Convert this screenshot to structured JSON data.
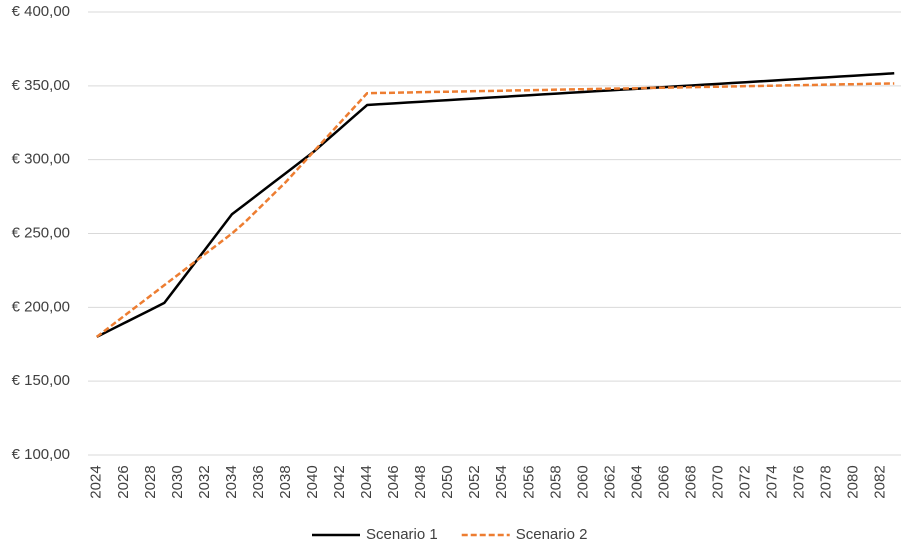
{
  "chart_data": {
    "type": "line",
    "categories": [
      "2024",
      null,
      "2026",
      null,
      "2028",
      null,
      "2030",
      null,
      "2032",
      null,
      "2034",
      null,
      "2036",
      null,
      "2038",
      null,
      "2040",
      null,
      "2042",
      null,
      "2044",
      null,
      "2046",
      null,
      "2048",
      null,
      "2050",
      null,
      "2052",
      null,
      "2054",
      null,
      "2056",
      null,
      "2058",
      null,
      "2060",
      null,
      "2062",
      null,
      "2064",
      null,
      "2066",
      null,
      "2068",
      null,
      "2070",
      null,
      "2072",
      null,
      "2074",
      null,
      "2076",
      null,
      "2078",
      null,
      "2080",
      null,
      "2082",
      null
    ],
    "series": [
      {
        "name": "Scenario 1",
        "color": "#000000",
        "dashed": false,
        "values": [
          180,
          184.6,
          189.2,
          193.8,
          198.4,
          203,
          215,
          227,
          239,
          251,
          263,
          270,
          277,
          284,
          291,
          298,
          305,
          313,
          321,
          329,
          337,
          337.6,
          338.1,
          338.7,
          339.2,
          339.8,
          340.3,
          340.9,
          341.4,
          342.0,
          342.5,
          343.1,
          343.6,
          344.2,
          344.7,
          345.3,
          345.8,
          346.4,
          346.9,
          347.5,
          348.0,
          348.6,
          349.1,
          349.7,
          350.2,
          350.8,
          351.3,
          351.9,
          352.4,
          353.0,
          353.5,
          354.1,
          354.6,
          355.2,
          355.7,
          356.3,
          356.8,
          357.4,
          357.9,
          358.5
        ]
      },
      {
        "name": "Scenario 2",
        "color": "#ed7d31",
        "dashed": true,
        "values": [
          180,
          187,
          194,
          201,
          208,
          215,
          222,
          229,
          236,
          243,
          250,
          258,
          267,
          276,
          285,
          295,
          305,
          315,
          325,
          335,
          345,
          345.2,
          345.3,
          345.5,
          345.7,
          345.9,
          346.0,
          346.2,
          346.4,
          346.5,
          346.7,
          346.9,
          347.0,
          347.2,
          347.4,
          347.6,
          347.7,
          347.9,
          348.1,
          348.2,
          348.4,
          348.6,
          348.7,
          348.9,
          349.1,
          349.3,
          349.4,
          349.6,
          349.8,
          349.9,
          350.1,
          350.3,
          350.4,
          350.6,
          350.8,
          351.0,
          351.1,
          351.3,
          351.5,
          351.6
        ]
      }
    ],
    "ylim": [
      100,
      400
    ],
    "yticks": [
      {
        "value": 100,
        "label": "€ 100,00"
      },
      {
        "value": 150,
        "label": "€ 150,00"
      },
      {
        "value": 200,
        "label": "€ 200,00"
      },
      {
        "value": 250,
        "label": "€ 250,00"
      },
      {
        "value": 300,
        "label": "€ 300,00"
      },
      {
        "value": 350,
        "label": "€ 350,00"
      },
      {
        "value": 400,
        "label": "€ 400,00"
      }
    ],
    "grid": true,
    "legend": "bottom"
  }
}
